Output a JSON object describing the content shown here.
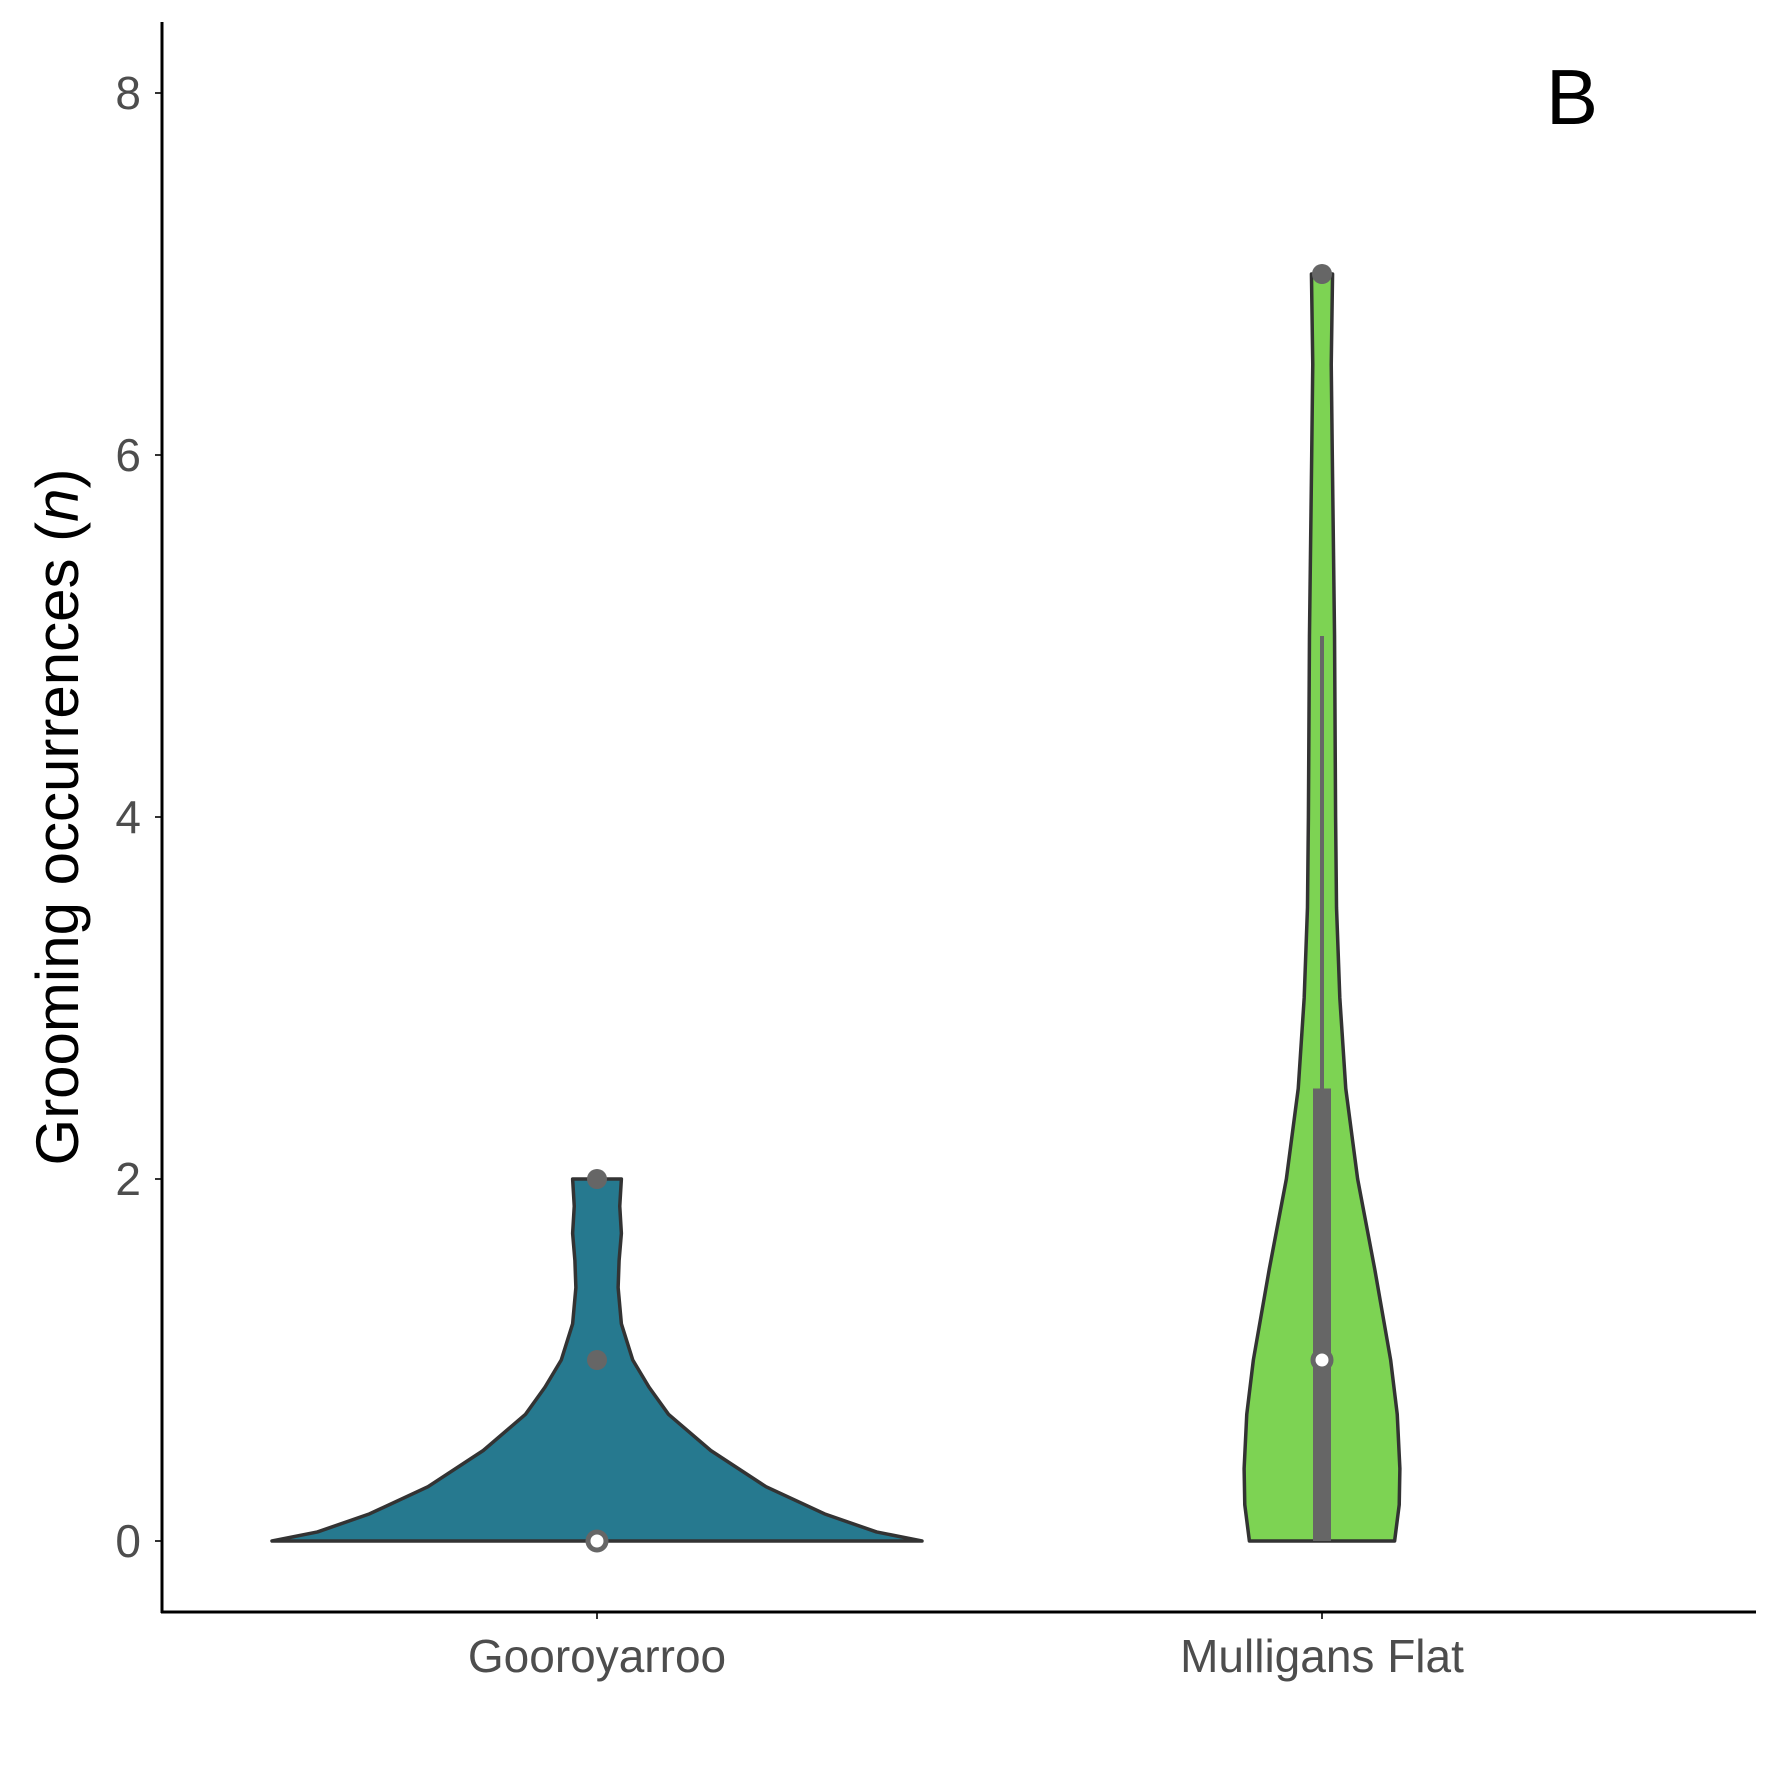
{
  "chart_data": {
    "type": "violin",
    "panel_label": "B",
    "ylabel": "Grooming occurrences",
    "ylabel_suffix": "n",
    "ylim": [
      -0.4,
      8.4
    ],
    "yticks": [
      "0",
      "2",
      "4",
      "6",
      "8"
    ],
    "grid": false,
    "categories": [
      "Gooroyarroo",
      "Mulligans Flat"
    ],
    "series": [
      {
        "category": "Gooroyarroo",
        "color": "#26798f",
        "min": 0,
        "max": 2,
        "median": 0,
        "points": [
          0,
          1,
          2
        ],
        "density": [
          [
            0,
            1.0
          ],
          [
            0.05,
            0.86
          ],
          [
            0.15,
            0.7
          ],
          [
            0.3,
            0.52
          ],
          [
            0.5,
            0.35
          ],
          [
            0.7,
            0.22
          ],
          [
            0.85,
            0.16
          ],
          [
            1.0,
            0.11
          ],
          [
            1.2,
            0.075
          ],
          [
            1.4,
            0.065
          ],
          [
            1.55,
            0.068
          ],
          [
            1.7,
            0.075
          ],
          [
            1.85,
            0.07
          ],
          [
            2.0,
            0.075
          ]
        ]
      },
      {
        "category": "Mulligans Flat",
        "color": "#7dd353",
        "min": 0,
        "max": 7,
        "median": 1,
        "q1": 0,
        "q3": 2.5,
        "whisker_high": 5,
        "points": [
          7
        ],
        "density": [
          [
            0,
            0.55
          ],
          [
            0.2,
            0.585
          ],
          [
            0.4,
            0.59
          ],
          [
            0.7,
            0.57
          ],
          [
            1.0,
            0.52
          ],
          [
            1.5,
            0.4
          ],
          [
            2.0,
            0.27
          ],
          [
            2.5,
            0.18
          ],
          [
            3.0,
            0.135
          ],
          [
            3.5,
            0.11
          ],
          [
            4.0,
            0.103
          ],
          [
            5.0,
            0.095
          ],
          [
            6.0,
            0.078
          ],
          [
            6.5,
            0.07
          ],
          [
            7.0,
            0.08
          ]
        ]
      }
    ]
  }
}
